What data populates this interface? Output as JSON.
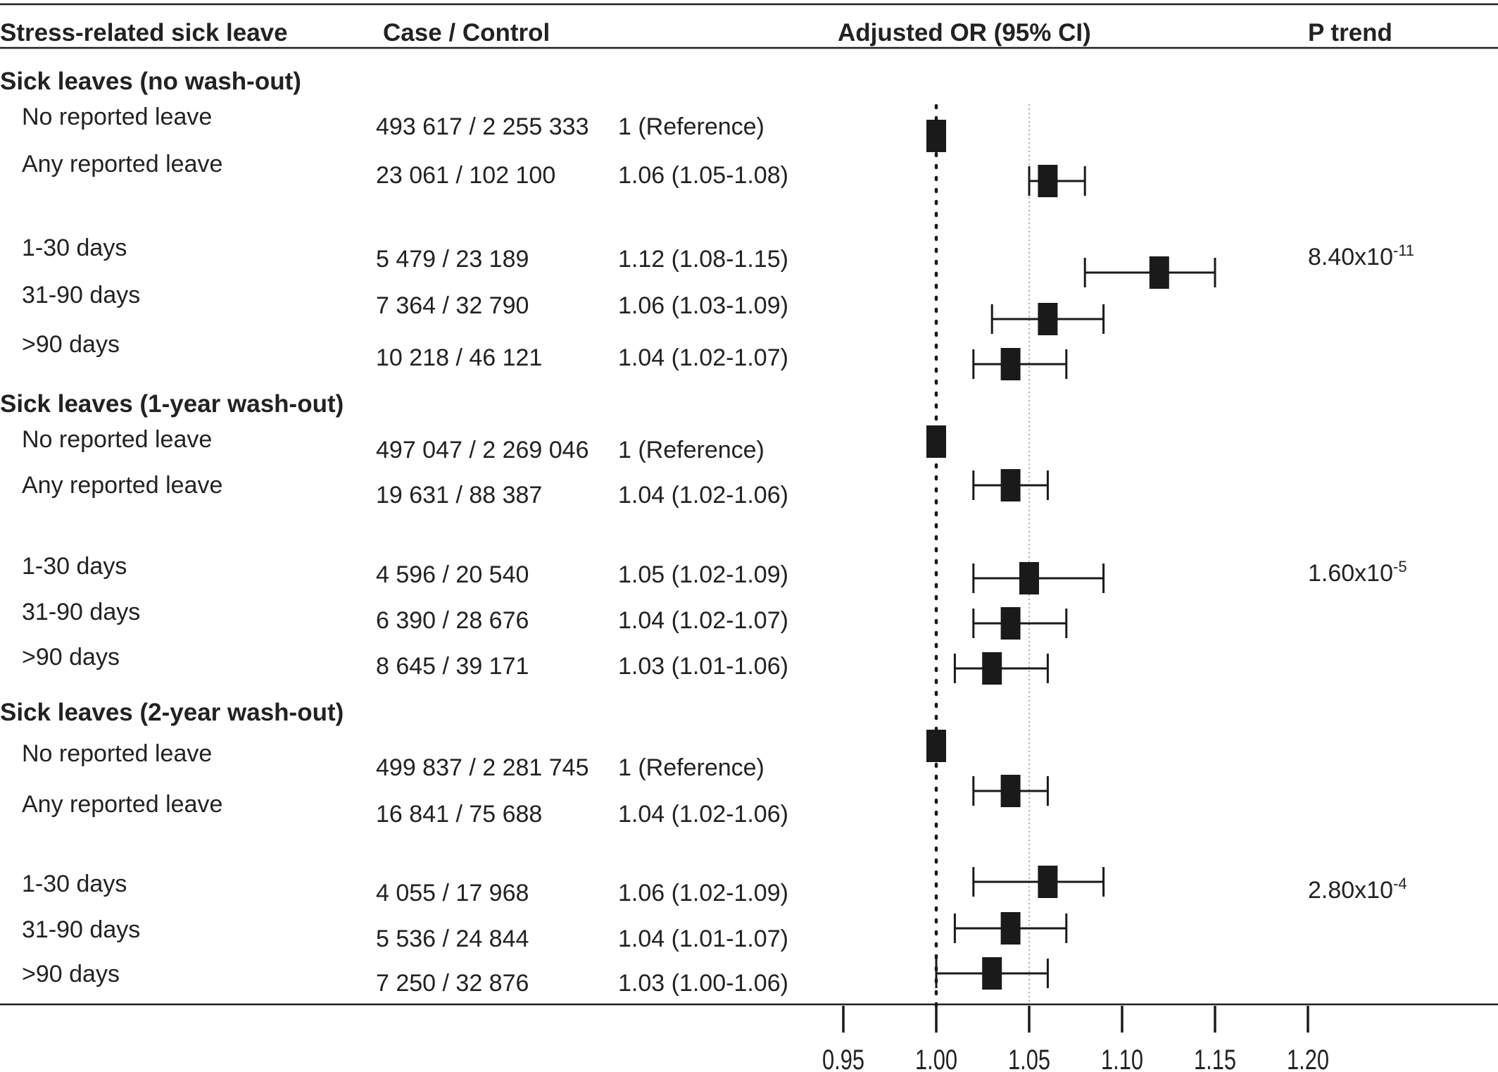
{
  "chart_data": {
    "type": "forest",
    "title": "Stress-related sick leave",
    "columns": {
      "label": "Stress-related sick leave",
      "counts": "Case / Control",
      "or": "Adjusted OR (95% CI)",
      "ptrend": "P trend"
    },
    "axis": {
      "xlim": [
        0.95,
        1.2
      ],
      "ticks": [
        "0.95",
        "1.00",
        "1.05",
        "1.10",
        "1.15",
        "1.20"
      ],
      "tick_values": [
        0.95,
        1.0,
        1.05,
        1.1,
        1.15,
        1.2
      ],
      "reference_line": 1.0,
      "dotted_line": 1.05
    },
    "sections": [
      {
        "title": "Sick leaves (no wash-out)",
        "ptrend": {
          "mantissa": "8.40x10",
          "exponent": "-11"
        },
        "rows": [
          {
            "label": "No reported leave",
            "counts": "493 617 / 2 255 333",
            "or_text": "1 (Reference)",
            "or": 1.0,
            "lo": null,
            "hi": null
          },
          {
            "label": "Any reported leave",
            "counts": "23 061 / 102 100",
            "or_text": "1.06 (1.05-1.08)",
            "or": 1.06,
            "lo": 1.05,
            "hi": 1.08
          },
          {
            "label": "1-30 days",
            "counts": "5 479 / 23 189",
            "or_text": "1.12 (1.08-1.15)",
            "or": 1.12,
            "lo": 1.08,
            "hi": 1.15
          },
          {
            "label": "31-90 days",
            "counts": "7 364 / 32 790",
            "or_text": "1.06 (1.03-1.09)",
            "or": 1.06,
            "lo": 1.03,
            "hi": 1.09
          },
          {
            "label": ">90 days",
            "counts": "10 218 / 46 121",
            "or_text": "1.04 (1.02-1.07)",
            "or": 1.04,
            "lo": 1.02,
            "hi": 1.07
          }
        ]
      },
      {
        "title": "Sick leaves (1-year wash-out)",
        "ptrend": {
          "mantissa": "1.60x10",
          "exponent": "-5"
        },
        "rows": [
          {
            "label": "No reported leave",
            "counts": "497 047 / 2 269 046",
            "or_text": "1 (Reference)",
            "or": 1.0,
            "lo": null,
            "hi": null
          },
          {
            "label": "Any reported leave",
            "counts": "19 631 / 88 387",
            "or_text": "1.04 (1.02-1.06)",
            "or": 1.04,
            "lo": 1.02,
            "hi": 1.06
          },
          {
            "label": "1-30 days",
            "counts": "4 596 / 20 540",
            "or_text": "1.05 (1.02-1.09)",
            "or": 1.05,
            "lo": 1.02,
            "hi": 1.09
          },
          {
            "label": "31-90 days",
            "counts": "6 390 / 28 676",
            "or_text": "1.04 (1.02-1.07)",
            "or": 1.04,
            "lo": 1.02,
            "hi": 1.07
          },
          {
            "label": ">90 days",
            "counts": "8 645 / 39 171",
            "or_text": "1.03 (1.01-1.06)",
            "or": 1.03,
            "lo": 1.01,
            "hi": 1.06
          }
        ]
      },
      {
        "title": "Sick leaves (2-year wash-out)",
        "ptrend": {
          "mantissa": "2.80x10",
          "exponent": "-4"
        },
        "rows": [
          {
            "label": "No reported leave",
            "counts": "499 837 / 2 281 745",
            "or_text": "1 (Reference)",
            "or": 1.0,
            "lo": null,
            "hi": null
          },
          {
            "label": "Any reported leave",
            "counts": "16 841 / 75 688",
            "or_text": "1.04 (1.02-1.06)",
            "or": 1.04,
            "lo": 1.02,
            "hi": 1.06
          },
          {
            "label": "1-30 days",
            "counts": "4 055 / 17 968",
            "or_text": "1.06 (1.02-1.09)",
            "or": 1.06,
            "lo": 1.02,
            "hi": 1.09
          },
          {
            "label": "31-90 days",
            "counts": "5 536 / 24 844",
            "or_text": "1.04 (1.01-1.07)",
            "or": 1.04,
            "lo": 1.01,
            "hi": 1.07
          },
          {
            "label": ">90 days",
            "counts": "7 250 / 32 876",
            "or_text": "1.03 (1.00-1.06)",
            "or": 1.03,
            "lo": 1.0,
            "hi": 1.06
          }
        ]
      }
    ]
  }
}
